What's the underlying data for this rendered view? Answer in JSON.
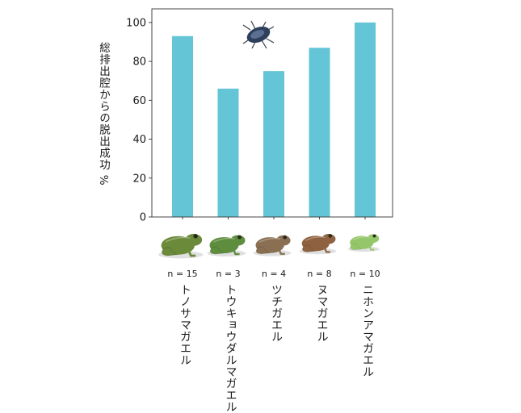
{
  "chart_data": {
    "type": "bar",
    "categories": [
      "トノサマガエル",
      "トウキョウダルマガエル",
      "ツチガエル",
      "ヌマガエル",
      "ニホンアマガエル"
    ],
    "sample_sizes": [
      "n = 15",
      "n = 3",
      "n = 4",
      "n = 8",
      "n = 10"
    ],
    "values": [
      93,
      66,
      75,
      87,
      100
    ],
    "ylabel": "総排出腔からの脱出成功 %",
    "xlabel": "",
    "title": "",
    "ylim": [
      0,
      107
    ],
    "yticks": [
      0,
      20,
      40,
      60,
      80,
      100
    ],
    "grid": false,
    "bar_color": "#63c5d6"
  },
  "decorations": {
    "beetle_icon": "water-beetle-icon",
    "frog_icons": [
      "frog-icon",
      "frog-icon",
      "frog-icon",
      "frog-icon",
      "frog-icon"
    ],
    "frog_colors": [
      "#6b8a3a",
      "#5e8d3e",
      "#8a6f52",
      "#8e6240",
      "#94c76a"
    ]
  }
}
